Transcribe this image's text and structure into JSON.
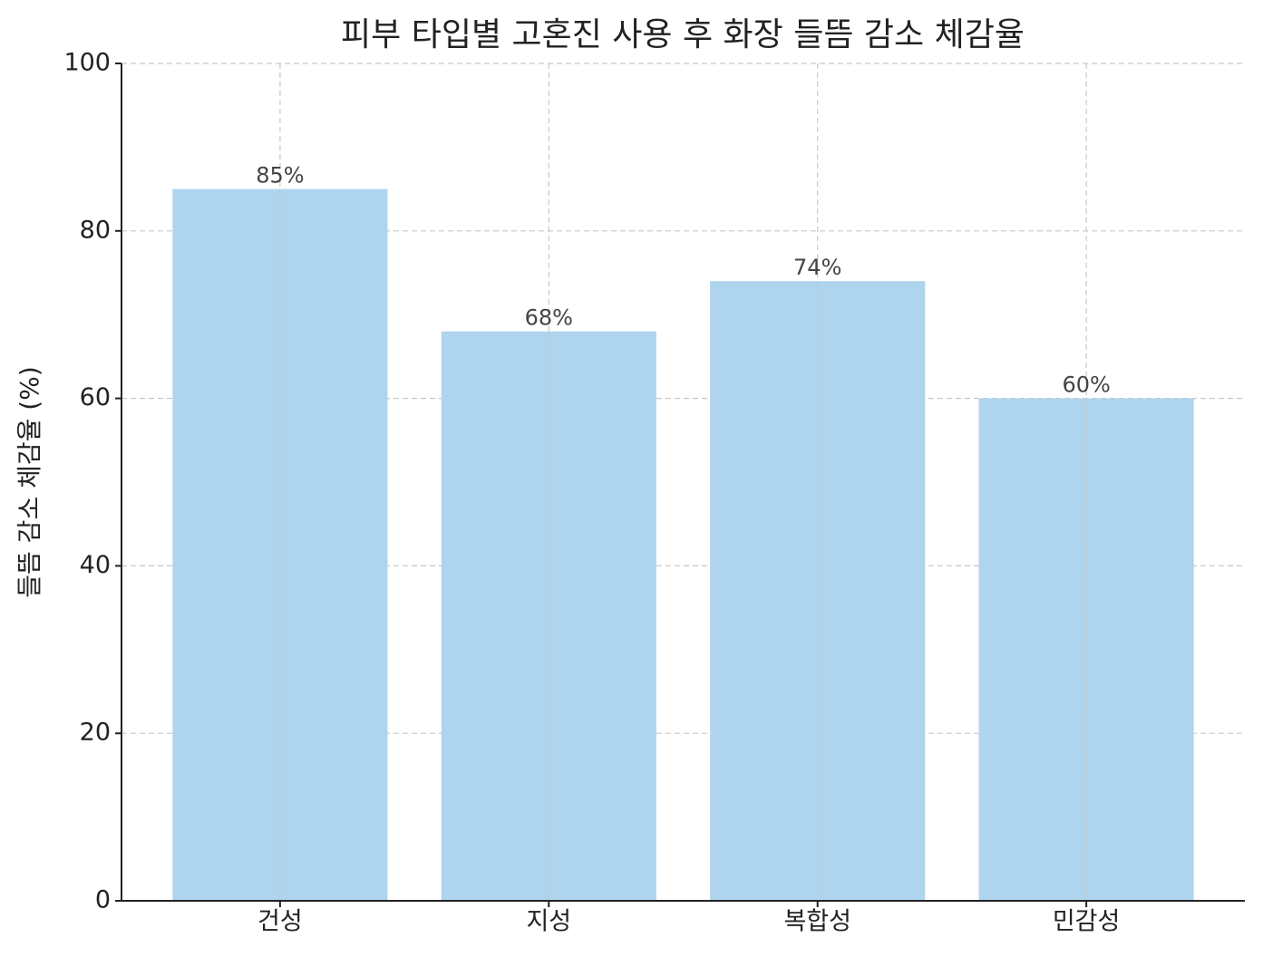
{
  "chart_data": {
    "type": "bar",
    "title": "피부 타입별 고혼진 사용 후 화장 들뜸 감소 체감율",
    "y_label": "들뜸 감소 체감율 (%)",
    "categories": [
      "건성",
      "지성",
      "복합성",
      "민감성"
    ],
    "values": [
      85,
      68,
      74,
      60
    ],
    "value_labels": [
      "85%",
      "68%",
      "74%",
      "60%"
    ],
    "color": "#aed4ee",
    "ylim": [
      0,
      100
    ],
    "yticks": [
      0,
      20,
      40,
      60,
      80,
      100
    ],
    "grid": true
  }
}
